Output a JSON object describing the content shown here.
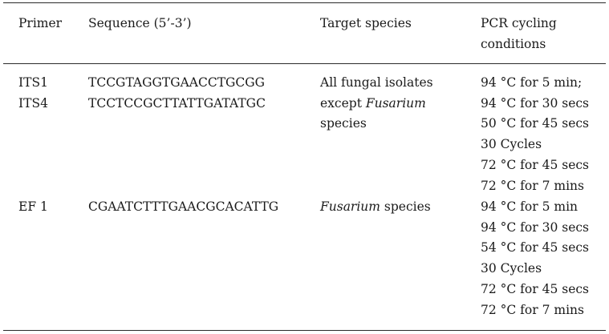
{
  "table": {
    "headers": {
      "primer": "Primer",
      "sequence": "Sequence (5’-3’)",
      "target": "Target species",
      "pcr_line1": "PCR cycling",
      "pcr_line2": "conditions"
    },
    "rows": [
      {
        "primers": [
          "ITS1",
          "ITS4"
        ],
        "sequences": [
          "TCCGTAGGTGAACCTGCGG",
          "TCCTCCGCTTATTGATATGC"
        ],
        "target": {
          "line1": "All fungal isolates",
          "line2_prefix": "except ",
          "line2_italic": "Fusarium",
          "line3": "species"
        },
        "pcr": [
          "94 °C for 5 min;",
          "94 °C for 30 secs",
          "50 °C for 45 secs",
          "30 Cycles",
          "72 °C for 45 secs",
          "72 °C for 7 mins"
        ]
      },
      {
        "primers": [
          "EF 1"
        ],
        "sequences": [
          "CGAATCTTTGAACGCACATTG"
        ],
        "target": {
          "italic": "Fusarium",
          "suffix": " species"
        },
        "pcr": [
          "94 °C for 5 min",
          "94 °C for 30 secs",
          "54 °C for 45 secs",
          "30 Cycles",
          "72 °C for 45 secs",
          "72 °C for 7 mins"
        ]
      }
    ]
  }
}
